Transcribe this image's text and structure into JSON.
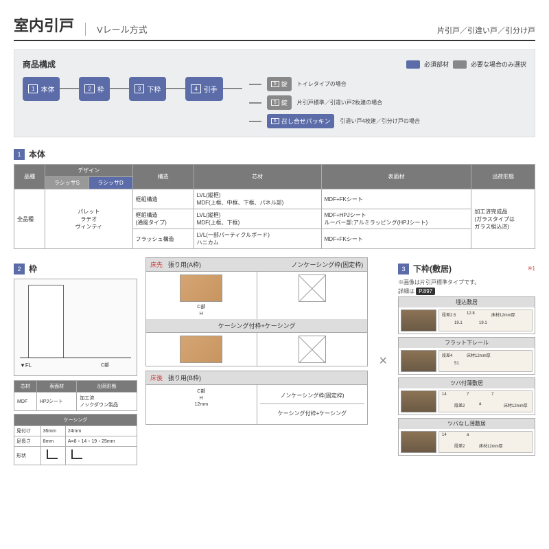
{
  "header": {
    "title": "室内引戸",
    "subtitle": "Vレール方式",
    "variants": "片引戸／引違い戸／引分け戸"
  },
  "composition": {
    "title": "商品構成",
    "legend": {
      "required": "必須部材",
      "optional": "必要な場合のみ選択",
      "required_color": "#5b6ca8",
      "optional_color": "#888888"
    },
    "nodes": [
      {
        "num": "1",
        "label": "本体"
      },
      {
        "num": "2",
        "label": "枠"
      },
      {
        "num": "3",
        "label": "下枠"
      },
      {
        "num": "4",
        "label": "引手"
      }
    ],
    "branches": [
      {
        "num": "5",
        "label": "錠",
        "caption": "トイレタイプの場合",
        "color": "gray"
      },
      {
        "num": "5",
        "label": "錠",
        "caption": "片引戸標準／引違い戸2枚建の場合",
        "color": "gray"
      },
      {
        "num": "6",
        "label": "召し合せパッキン",
        "caption": "引違い戸4枚建／引分け戸の場合",
        "color": "blue"
      }
    ]
  },
  "section1": {
    "num": "1",
    "title": "本体",
    "headers": [
      "品種",
      "デザイン",
      "構造",
      "芯材",
      "表面材",
      "出荷形態"
    ],
    "design_sub": [
      "ラシッサS",
      "ラシッサD"
    ],
    "design_items": "パレット\nラテオ\nヴィンティ",
    "品種": "全品種",
    "出荷": "加工済完成品\n(ガラスタイプは\nガラス組込済)",
    "rows": [
      {
        "構造": "框組構造",
        "芯材": "LVL(縦框)\nMDF(上框、中框、下框、パネル部)",
        "表面": "MDF+FKシート"
      },
      {
        "構造": "框組構造\n(通風タイプ)",
        "芯材": "LVL(縦框)\nMDF(上框、下框)",
        "表面": "MDF+HPJシート\nルーバー部:アルミラッピング(HPJシート)"
      },
      {
        "構造": "フラッシュ構造",
        "芯材": "LVL(一部パーティクルボード)\nハニカム",
        "表面": "MDF+FKシート"
      }
    ]
  },
  "section2": {
    "num": "2",
    "title": "枠",
    "fl_label": "▼FL",
    "c_label": "C部",
    "mini": {
      "headers": [
        "芯材",
        "表面材",
        "出荷形態"
      ],
      "row": [
        "MDF",
        "HPJシート",
        "加工済\nノックダウン製品"
      ]
    },
    "casing": {
      "title": "ケーシング",
      "rows": [
        [
          "見付け",
          "36mm",
          "24mm"
        ],
        [
          "足長さ",
          "8mm",
          "A=8・14・19・25mm"
        ]
      ],
      "shape_label": "形状"
    },
    "frame_a": {
      "title_red": "床先",
      "title": "張り用(A枠)",
      "opts": [
        "ノンケーシング枠(固定枠)",
        "ケーシング付枠+ケーシング"
      ],
      "c": "C部",
      "h": "H"
    },
    "frame_b": {
      "title_red": "床後",
      "title": "張り用(B枠)",
      "opts": [
        "ノンケーシング枠(固定枠)",
        "ケーシング付枠+ケーシング"
      ],
      "c": "C部",
      "h": "H",
      "dim": "12mm"
    }
  },
  "section3": {
    "num": "3",
    "title": "下枠(敷居)",
    "note_red": "※1",
    "note1": "※画像は片引戸標準タイプです。",
    "note2": "詳細は",
    "page_ref": "P.897",
    "sills": [
      {
        "title": "埋込敷居",
        "dims": [
          "段差2.5",
          "19.1",
          "12.8",
          "19.1",
          "床材12mm厚"
        ]
      },
      {
        "title": "フラット下レール",
        "dims": [
          "段差4",
          "51",
          "床材12mm厚"
        ]
      },
      {
        "title": "ツバ付薄敷居",
        "dims": [
          "14",
          "段差2",
          "7",
          "a",
          "7",
          "床材12mm厚"
        ]
      },
      {
        "title": "ツバなし薄敷居",
        "dims": [
          "14",
          "段差2",
          "a",
          "床材12mm厚"
        ]
      }
    ]
  }
}
